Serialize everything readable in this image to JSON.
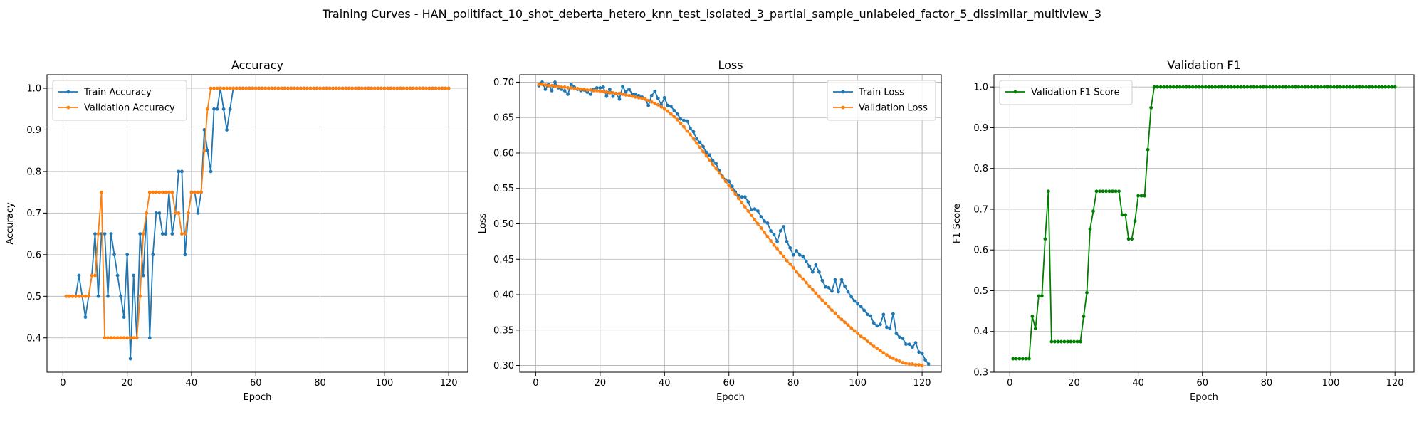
{
  "suptitle": "Training Curves - HAN_politifact_10_shot_deberta_hetero_knn_test_isolated_3_partial_sample_unlabeled_factor_5_dissimilar_multiview_3",
  "colors": {
    "blue": "#1f77b4",
    "orange": "#ff7f0e",
    "green": "#008000",
    "grid": "#b0b0b0"
  },
  "chart_data": [
    {
      "type": "line",
      "title": "Accuracy",
      "xlabel": "Epoch",
      "ylabel": "Accuracy",
      "xlim": [
        -4.95,
        125.95
      ],
      "ylim": [
        0.3175,
        1.0325
      ],
      "xticks": [
        0,
        20,
        40,
        60,
        80,
        100,
        120
      ],
      "yticks": [
        0.4,
        0.5,
        0.6,
        0.7,
        0.8,
        0.9,
        1.0
      ],
      "ytick_labels": [
        "0.4",
        "0.5",
        "0.6",
        "0.7",
        "0.8",
        "0.9",
        "1.0"
      ],
      "grid": true,
      "legend": "upper left",
      "series": [
        {
          "name": "Train Accuracy",
          "color": "#1f77b4",
          "values": [
            0.5,
            0.5,
            0.5,
            0.5,
            0.55,
            0.5,
            0.45,
            0.5,
            0.55,
            0.65,
            0.5,
            0.65,
            0.65,
            0.5,
            0.65,
            0.6,
            0.55,
            0.5,
            0.45,
            0.6,
            0.35,
            0.55,
            0.4,
            0.65,
            0.55,
            0.7,
            0.4,
            0.6,
            0.7,
            0.7,
            0.65,
            0.65,
            0.75,
            0.65,
            0.7,
            0.8,
            0.8,
            0.6,
            0.7,
            0.75,
            0.75,
            0.7,
            0.75,
            0.9,
            0.85,
            0.8,
            0.95,
            0.95,
            1.0,
            0.95,
            0.9,
            0.95,
            1.0,
            1.0,
            1.0,
            1.0,
            1.0,
            1.0,
            1.0,
            1.0,
            1.0,
            1.0,
            1.0,
            1.0,
            1.0,
            1.0,
            1.0,
            1.0,
            1.0,
            1.0,
            1.0,
            1.0,
            1.0,
            1.0,
            1.0,
            1.0,
            1.0,
            1.0,
            1.0,
            1.0,
            1.0,
            1.0,
            1.0,
            1.0,
            1.0,
            1.0,
            1.0,
            1.0,
            1.0,
            1.0,
            1.0,
            1.0,
            1.0,
            1.0,
            1.0,
            1.0,
            1.0,
            1.0,
            1.0,
            1.0,
            1.0,
            1.0,
            1.0,
            1.0,
            1.0,
            1.0,
            1.0,
            1.0,
            1.0,
            1.0,
            1.0,
            1.0,
            1.0,
            1.0,
            1.0,
            1.0,
            1.0,
            1.0,
            1.0,
            1.0
          ]
        },
        {
          "name": "Validation Accuracy",
          "color": "#ff7f0e",
          "values": [
            0.5,
            0.5,
            0.5,
            0.5,
            0.5,
            0.5,
            0.5,
            0.5,
            0.55,
            0.55,
            0.65,
            0.75,
            0.4,
            0.4,
            0.4,
            0.4,
            0.4,
            0.4,
            0.4,
            0.4,
            0.4,
            0.4,
            0.4,
            0.5,
            0.65,
            0.7,
            0.75,
            0.75,
            0.75,
            0.75,
            0.75,
            0.75,
            0.75,
            0.75,
            0.7,
            0.7,
            0.65,
            0.65,
            0.7,
            0.75,
            0.75,
            0.75,
            0.75,
            0.85,
            0.95,
            1.0,
            1.0,
            1.0,
            1.0,
            1.0,
            1.0,
            1.0,
            1.0,
            1.0,
            1.0,
            1.0,
            1.0,
            1.0,
            1.0,
            1.0,
            1.0,
            1.0,
            1.0,
            1.0,
            1.0,
            1.0,
            1.0,
            1.0,
            1.0,
            1.0,
            1.0,
            1.0,
            1.0,
            1.0,
            1.0,
            1.0,
            1.0,
            1.0,
            1.0,
            1.0,
            1.0,
            1.0,
            1.0,
            1.0,
            1.0,
            1.0,
            1.0,
            1.0,
            1.0,
            1.0,
            1.0,
            1.0,
            1.0,
            1.0,
            1.0,
            1.0,
            1.0,
            1.0,
            1.0,
            1.0,
            1.0,
            1.0,
            1.0,
            1.0,
            1.0,
            1.0,
            1.0,
            1.0,
            1.0,
            1.0,
            1.0,
            1.0,
            1.0,
            1.0,
            1.0,
            1.0,
            1.0,
            1.0,
            1.0,
            1.0
          ]
        }
      ]
    },
    {
      "type": "line",
      "title": "Loss",
      "xlabel": "Epoch",
      "ylabel": "Loss",
      "xlim": [
        -4.95,
        125.95
      ],
      "ylim": [
        0.2905,
        0.7105
      ],
      "xticks": [
        0,
        20,
        40,
        60,
        80,
        100,
        120
      ],
      "yticks": [
        0.3,
        0.35,
        0.4,
        0.45,
        0.5,
        0.55,
        0.6,
        0.65,
        0.7
      ],
      "ytick_labels": [
        "0.30",
        "0.35",
        "0.40",
        "0.45",
        "0.50",
        "0.55",
        "0.60",
        "0.65",
        "0.70"
      ],
      "grid": true,
      "legend": "upper right",
      "series": [
        {
          "name": "Train Loss",
          "color": "#1f77b4",
          "values": [
            0.695,
            0.7,
            0.69,
            0.697,
            0.688,
            0.7,
            0.692,
            0.69,
            0.688,
            0.683,
            0.697,
            0.693,
            0.69,
            0.688,
            0.689,
            0.686,
            0.683,
            0.69,
            0.692,
            0.692,
            0.693,
            0.68,
            0.69,
            0.68,
            0.684,
            0.676,
            0.694,
            0.686,
            0.69,
            0.683,
            0.683,
            0.681,
            0.679,
            0.676,
            0.667,
            0.681,
            0.687,
            0.677,
            0.668,
            0.678,
            0.667,
            0.666,
            0.66,
            0.655,
            0.648,
            0.646,
            0.645,
            0.635,
            0.63,
            0.62,
            0.615,
            0.609,
            0.601,
            0.597,
            0.589,
            0.585,
            0.575,
            0.567,
            0.562,
            0.56,
            0.553,
            0.545,
            0.54,
            0.538,
            0.538,
            0.531,
            0.52,
            0.521,
            0.518,
            0.51,
            0.504,
            0.501,
            0.49,
            0.485,
            0.475,
            0.49,
            0.496,
            0.475,
            0.466,
            0.456,
            0.462,
            0.456,
            0.454,
            0.447,
            0.44,
            0.432,
            0.442,
            0.432,
            0.42,
            0.411,
            0.41,
            0.405,
            0.421,
            0.404,
            0.421,
            0.412,
            0.404,
            0.397,
            0.391,
            0.387,
            0.383,
            0.378,
            0.372,
            0.37,
            0.36,
            0.356,
            0.358,
            0.372,
            0.354,
            0.352,
            0.373,
            0.345,
            0.34,
            0.338,
            0.33,
            0.33,
            0.326,
            0.332,
            0.319,
            0.317,
            0.308,
            0.302
          ]
        },
        {
          "name": "Validation Loss",
          "color": "#ff7f0e",
          "values": [
            0.697,
            0.697,
            0.696,
            0.695,
            0.695,
            0.694,
            0.694,
            0.693,
            0.693,
            0.692,
            0.692,
            0.691,
            0.691,
            0.69,
            0.69,
            0.689,
            0.689,
            0.688,
            0.688,
            0.687,
            0.687,
            0.686,
            0.685,
            0.685,
            0.684,
            0.684,
            0.683,
            0.682,
            0.681,
            0.68,
            0.679,
            0.678,
            0.677,
            0.676,
            0.674,
            0.672,
            0.67,
            0.668,
            0.665,
            0.662,
            0.659,
            0.655,
            0.651,
            0.647,
            0.642,
            0.637,
            0.631,
            0.626,
            0.62,
            0.614,
            0.608,
            0.602,
            0.596,
            0.59,
            0.584,
            0.578,
            0.572,
            0.566,
            0.56,
            0.554,
            0.548,
            0.542,
            0.536,
            0.53,
            0.524,
            0.518,
            0.512,
            0.506,
            0.5,
            0.494,
            0.488,
            0.482,
            0.476,
            0.47,
            0.465,
            0.459,
            0.454,
            0.448,
            0.443,
            0.438,
            0.432,
            0.427,
            0.422,
            0.417,
            0.412,
            0.407,
            0.402,
            0.397,
            0.392,
            0.388,
            0.383,
            0.378,
            0.374,
            0.369,
            0.365,
            0.361,
            0.357,
            0.353,
            0.349,
            0.345,
            0.341,
            0.338,
            0.334,
            0.331,
            0.327,
            0.324,
            0.321,
            0.318,
            0.315,
            0.312,
            0.31,
            0.308,
            0.306,
            0.304,
            0.303,
            0.302,
            0.302,
            0.301,
            0.301,
            0.3
          ]
        }
      ]
    },
    {
      "type": "line",
      "title": "Validation F1",
      "xlabel": "Epoch",
      "ylabel": "F1 Score",
      "xlim": [
        -4.95,
        125.95
      ],
      "ylim": [
        0.3,
        1.03
      ],
      "xticks": [
        0,
        20,
        40,
        60,
        80,
        100,
        120
      ],
      "yticks": [
        0.3,
        0.4,
        0.5,
        0.6,
        0.7,
        0.8,
        0.9,
        1.0
      ],
      "ytick_labels": [
        "0.3",
        "0.4",
        "0.5",
        "0.6",
        "0.7",
        "0.8",
        "0.9",
        "1.0"
      ],
      "grid": true,
      "legend": "upper left",
      "series": [
        {
          "name": "Validation F1 Score",
          "color": "#008000",
          "values": [
            0.333,
            0.333,
            0.333,
            0.333,
            0.333,
            0.333,
            0.437,
            0.407,
            0.487,
            0.487,
            0.627,
            0.744,
            0.375,
            0.375,
            0.375,
            0.375,
            0.375,
            0.375,
            0.375,
            0.375,
            0.375,
            0.375,
            0.437,
            0.495,
            0.651,
            0.695,
            0.744,
            0.744,
            0.744,
            0.744,
            0.744,
            0.744,
            0.744,
            0.744,
            0.686,
            0.686,
            0.627,
            0.627,
            0.671,
            0.733,
            0.733,
            0.733,
            0.846,
            0.949,
            1.0,
            1.0,
            1.0,
            1.0,
            1.0,
            1.0,
            1.0,
            1.0,
            1.0,
            1.0,
            1.0,
            1.0,
            1.0,
            1.0,
            1.0,
            1.0,
            1.0,
            1.0,
            1.0,
            1.0,
            1.0,
            1.0,
            1.0,
            1.0,
            1.0,
            1.0,
            1.0,
            1.0,
            1.0,
            1.0,
            1.0,
            1.0,
            1.0,
            1.0,
            1.0,
            1.0,
            1.0,
            1.0,
            1.0,
            1.0,
            1.0,
            1.0,
            1.0,
            1.0,
            1.0,
            1.0,
            1.0,
            1.0,
            1.0,
            1.0,
            1.0,
            1.0,
            1.0,
            1.0,
            1.0,
            1.0,
            1.0,
            1.0,
            1.0,
            1.0,
            1.0,
            1.0,
            1.0,
            1.0,
            1.0,
            1.0,
            1.0,
            1.0,
            1.0,
            1.0,
            1.0,
            1.0,
            1.0,
            1.0,
            1.0,
            1.0
          ]
        }
      ]
    }
  ]
}
